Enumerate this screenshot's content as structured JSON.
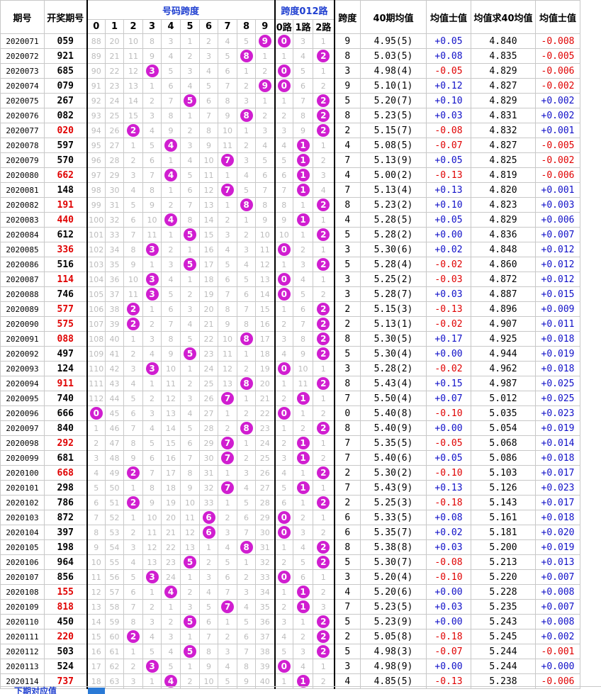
{
  "header": {
    "period": "期号",
    "number": "开奖期号",
    "digits_group": "号码跨度",
    "route_group": "跨度012路",
    "span": "跨度",
    "avg40": "40期均值",
    "dev": "均值士值",
    "avg_of_avg": "均值求40均值",
    "dev2": "均值士值",
    "digits": [
      "0",
      "1",
      "2",
      "3",
      "4",
      "5",
      "6",
      "7",
      "8",
      "9"
    ],
    "routes": [
      "0路",
      "1路",
      "2路"
    ]
  },
  "colors": {
    "ball": "#d01ed0",
    "red": "#e00000",
    "blue": "#1010c8"
  },
  "rows": [
    {
      "p": "2020071",
      "n": "059",
      "red": false,
      "d": [
        88,
        20,
        10,
        8,
        3,
        1,
        2,
        4,
        5,
        "B"
      ],
      "r": [
        "B",
        3,
        1
      ],
      "s": "9",
      "a": "4.95(5)",
      "v": "+0.05",
      "m": "4.840",
      "w": "-0.008"
    },
    {
      "p": "2020072",
      "n": "921",
      "red": false,
      "d": [
        89,
        21,
        11,
        9,
        4,
        2,
        3,
        5,
        "B",
        1
      ],
      "r": [
        1,
        4,
        "B"
      ],
      "s": "8",
      "a": "5.03(5)",
      "v": "+0.08",
      "m": "4.835",
      "w": "-0.005"
    },
    {
      "p": "2020073",
      "n": "685",
      "red": false,
      "d": [
        90,
        22,
        12,
        "B",
        5,
        3,
        4,
        6,
        1,
        2
      ],
      "r": [
        "B",
        5,
        1
      ],
      "s": "3",
      "a": "4.98(4)",
      "v": "-0.05",
      "m": "4.829",
      "w": "-0.006"
    },
    {
      "p": "2020074",
      "n": "079",
      "red": false,
      "d": [
        91,
        23,
        13,
        1,
        6,
        4,
        5,
        7,
        2,
        "B"
      ],
      "r": [
        "B",
        6,
        2
      ],
      "s": "9",
      "a": "5.10(1)",
      "v": "+0.12",
      "m": "4.827",
      "w": "-0.002"
    },
    {
      "p": "2020075",
      "n": "267",
      "red": false,
      "d": [
        92,
        24,
        14,
        2,
        7,
        "B",
        6,
        8,
        3,
        1
      ],
      "r": [
        1,
        7,
        "B"
      ],
      "s": "5",
      "a": "5.20(7)",
      "v": "+0.10",
      "m": "4.829",
      "w": "+0.002"
    },
    {
      "p": "2020076",
      "n": "082",
      "red": false,
      "d": [
        93,
        25,
        15,
        3,
        8,
        1,
        7,
        9,
        "B",
        2
      ],
      "r": [
        2,
        8,
        "B"
      ],
      "s": "8",
      "a": "5.23(5)",
      "v": "+0.03",
      "m": "4.831",
      "w": "+0.002"
    },
    {
      "p": "2020077",
      "n": "020",
      "red": true,
      "d": [
        94,
        26,
        "B",
        4,
        9,
        2,
        8,
        10,
        1,
        3
      ],
      "r": [
        3,
        9,
        "B"
      ],
      "s": "2",
      "a": "5.15(7)",
      "v": "-0.08",
      "m": "4.832",
      "w": "+0.001"
    },
    {
      "p": "2020078",
      "n": "597",
      "red": false,
      "d": [
        95,
        27,
        1,
        5,
        "B",
        3,
        9,
        11,
        2,
        4
      ],
      "r": [
        4,
        "B",
        1
      ],
      "s": "4",
      "a": "5.08(5)",
      "v": "-0.07",
      "m": "4.827",
      "w": "-0.005"
    },
    {
      "p": "2020079",
      "n": "570",
      "red": false,
      "d": [
        96,
        28,
        2,
        6,
        1,
        4,
        10,
        "B",
        3,
        5
      ],
      "r": [
        5,
        "B",
        2
      ],
      "s": "7",
      "a": "5.13(9)",
      "v": "+0.05",
      "m": "4.825",
      "w": "-0.002"
    },
    {
      "p": "2020080",
      "n": "662",
      "red": true,
      "d": [
        97,
        29,
        3,
        7,
        "B",
        5,
        11,
        1,
        4,
        6
      ],
      "r": [
        6,
        "B",
        3
      ],
      "s": "4",
      "a": "5.00(2)",
      "v": "-0.13",
      "m": "4.819",
      "w": "-0.006"
    },
    {
      "p": "2020081",
      "n": "148",
      "red": false,
      "d": [
        98,
        30,
        4,
        8,
        1,
        6,
        12,
        "B",
        5,
        7
      ],
      "r": [
        7,
        "B",
        4
      ],
      "s": "7",
      "a": "5.13(4)",
      "v": "+0.13",
      "m": "4.820",
      "w": "+0.001"
    },
    {
      "p": "2020082",
      "n": "191",
      "red": true,
      "d": [
        99,
        31,
        5,
        9,
        2,
        7,
        13,
        1,
        "B",
        8
      ],
      "r": [
        8,
        1,
        "B"
      ],
      "s": "8",
      "a": "5.23(2)",
      "v": "+0.10",
      "m": "4.823",
      "w": "+0.003"
    },
    {
      "p": "2020083",
      "n": "440",
      "red": true,
      "d": [
        100,
        32,
        6,
        10,
        "B",
        8,
        14,
        2,
        1,
        9
      ],
      "r": [
        9,
        "B",
        1
      ],
      "s": "4",
      "a": "5.28(5)",
      "v": "+0.05",
      "m": "4.829",
      "w": "+0.006"
    },
    {
      "p": "2020084",
      "n": "612",
      "red": false,
      "d": [
        101,
        33,
        7,
        11,
        1,
        "B",
        15,
        3,
        2,
        10
      ],
      "r": [
        10,
        1,
        "B"
      ],
      "s": "5",
      "a": "5.28(2)",
      "v": "+0.00",
      "m": "4.836",
      "w": "+0.007"
    },
    {
      "p": "2020085",
      "n": "336",
      "red": true,
      "d": [
        102,
        34,
        8,
        "B",
        2,
        1,
        16,
        4,
        3,
        11
      ],
      "r": [
        "B",
        2,
        1
      ],
      "s": "3",
      "a": "5.30(6)",
      "v": "+0.02",
      "m": "4.848",
      "w": "+0.012"
    },
    {
      "p": "2020086",
      "n": "516",
      "red": false,
      "d": [
        103,
        35,
        9,
        1,
        3,
        "B",
        17,
        5,
        4,
        12
      ],
      "r": [
        1,
        3,
        "B"
      ],
      "s": "5",
      "a": "5.28(4)",
      "v": "-0.02",
      "m": "4.860",
      "w": "+0.012"
    },
    {
      "p": "2020087",
      "n": "114",
      "red": true,
      "d": [
        104,
        36,
        10,
        "B",
        4,
        1,
        18,
        6,
        5,
        13
      ],
      "r": [
        "B",
        4,
        1
      ],
      "s": "3",
      "a": "5.25(2)",
      "v": "-0.03",
      "m": "4.872",
      "w": "+0.012"
    },
    {
      "p": "2020088",
      "n": "746",
      "red": false,
      "d": [
        105,
        37,
        11,
        "B",
        5,
        2,
        19,
        7,
        6,
        14
      ],
      "r": [
        "B",
        5,
        2
      ],
      "s": "3",
      "a": "5.28(7)",
      "v": "+0.03",
      "m": "4.887",
      "w": "+0.015"
    },
    {
      "p": "2020089",
      "n": "577",
      "red": true,
      "d": [
        106,
        38,
        "B",
        1,
        6,
        3,
        20,
        8,
        7,
        15
      ],
      "r": [
        1,
        6,
        "B"
      ],
      "s": "2",
      "a": "5.15(3)",
      "v": "-0.13",
      "m": "4.896",
      "w": "+0.009"
    },
    {
      "p": "2020090",
      "n": "575",
      "red": true,
      "d": [
        107,
        39,
        "B",
        2,
        7,
        4,
        21,
        9,
        8,
        16
      ],
      "r": [
        2,
        7,
        "B"
      ],
      "s": "2",
      "a": "5.13(1)",
      "v": "-0.02",
      "m": "4.907",
      "w": "+0.011"
    },
    {
      "p": "2020091",
      "n": "088",
      "red": true,
      "d": [
        108,
        40,
        1,
        3,
        8,
        5,
        22,
        10,
        "B",
        17
      ],
      "r": [
        3,
        8,
        "B"
      ],
      "s": "8",
      "a": "5.30(5)",
      "v": "+0.17",
      "m": "4.925",
      "w": "+0.018"
    },
    {
      "p": "2020092",
      "n": "497",
      "red": false,
      "d": [
        109,
        41,
        2,
        4,
        9,
        "B",
        23,
        11,
        1,
        18
      ],
      "r": [
        4,
        9,
        "B"
      ],
      "s": "5",
      "a": "5.30(4)",
      "v": "+0.00",
      "m": "4.944",
      "w": "+0.019"
    },
    {
      "p": "2020093",
      "n": "124",
      "red": false,
      "d": [
        110,
        42,
        3,
        "B",
        10,
        1,
        24,
        12,
        2,
        19
      ],
      "r": [
        "B",
        10,
        1
      ],
      "s": "3",
      "a": "5.28(2)",
      "v": "-0.02",
      "m": "4.962",
      "w": "+0.018"
    },
    {
      "p": "2020094",
      "n": "911",
      "red": true,
      "d": [
        111,
        43,
        4,
        1,
        11,
        2,
        25,
        13,
        "B",
        20
      ],
      "r": [
        1,
        11,
        "B"
      ],
      "s": "8",
      "a": "5.43(4)",
      "v": "+0.15",
      "m": "4.987",
      "w": "+0.025"
    },
    {
      "p": "2020095",
      "n": "740",
      "red": false,
      "d": [
        112,
        44,
        5,
        2,
        12,
        3,
        26,
        "B",
        1,
        21
      ],
      "r": [
        2,
        "B",
        1
      ],
      "s": "7",
      "a": "5.50(4)",
      "v": "+0.07",
      "m": "5.012",
      "w": "+0.025"
    },
    {
      "p": "2020096",
      "n": "666",
      "red": false,
      "d": [
        "B",
        45,
        6,
        3,
        13,
        4,
        27,
        1,
        2,
        22
      ],
      "r": [
        "B",
        1,
        2
      ],
      "s": "0",
      "a": "5.40(8)",
      "v": "-0.10",
      "m": "5.035",
      "w": "+0.023"
    },
    {
      "p": "2020097",
      "n": "840",
      "red": false,
      "d": [
        1,
        46,
        7,
        4,
        14,
        5,
        28,
        2,
        "B",
        23
      ],
      "r": [
        1,
        2,
        "B"
      ],
      "s": "8",
      "a": "5.40(9)",
      "v": "+0.00",
      "m": "5.054",
      "w": "+0.019"
    },
    {
      "p": "2020098",
      "n": "292",
      "red": true,
      "d": [
        2,
        47,
        8,
        5,
        15,
        6,
        29,
        "B",
        1,
        24
      ],
      "r": [
        2,
        "B",
        1
      ],
      "s": "7",
      "a": "5.35(5)",
      "v": "-0.05",
      "m": "5.068",
      "w": "+0.014"
    },
    {
      "p": "2020099",
      "n": "681",
      "red": false,
      "d": [
        3,
        48,
        9,
        6,
        16,
        7,
        30,
        "B",
        2,
        25
      ],
      "r": [
        3,
        "B",
        2
      ],
      "s": "7",
      "a": "5.40(6)",
      "v": "+0.05",
      "m": "5.086",
      "w": "+0.018"
    },
    {
      "p": "2020100",
      "n": "668",
      "red": true,
      "d": [
        4,
        49,
        "B",
        7,
        17,
        8,
        31,
        1,
        3,
        26
      ],
      "r": [
        4,
        1,
        "B"
      ],
      "s": "2",
      "a": "5.30(2)",
      "v": "-0.10",
      "m": "5.103",
      "w": "+0.017"
    },
    {
      "p": "2020101",
      "n": "298",
      "red": false,
      "d": [
        5,
        50,
        1,
        8,
        18,
        9,
        32,
        "B",
        4,
        27
      ],
      "r": [
        5,
        "B",
        1
      ],
      "s": "7",
      "a": "5.43(9)",
      "v": "+0.13",
      "m": "5.126",
      "w": "+0.023"
    },
    {
      "p": "2020102",
      "n": "786",
      "red": false,
      "d": [
        6,
        51,
        "B",
        9,
        19,
        10,
        33,
        1,
        5,
        28
      ],
      "r": [
        6,
        1,
        "B"
      ],
      "s": "2",
      "a": "5.25(3)",
      "v": "-0.18",
      "m": "5.143",
      "w": "+0.017"
    },
    {
      "p": "2020103",
      "n": "872",
      "red": false,
      "d": [
        7,
        52,
        1,
        10,
        20,
        11,
        "B",
        2,
        6,
        29
      ],
      "r": [
        "B",
        2,
        1
      ],
      "s": "6",
      "a": "5.33(5)",
      "v": "+0.08",
      "m": "5.161",
      "w": "+0.018"
    },
    {
      "p": "2020104",
      "n": "397",
      "red": false,
      "d": [
        8,
        53,
        2,
        11,
        21,
        12,
        "B",
        3,
        7,
        30
      ],
      "r": [
        "B",
        3,
        2
      ],
      "s": "6",
      "a": "5.35(7)",
      "v": "+0.02",
      "m": "5.181",
      "w": "+0.020"
    },
    {
      "p": "2020105",
      "n": "198",
      "red": false,
      "d": [
        9,
        54,
        3,
        12,
        22,
        13,
        1,
        4,
        "B",
        31
      ],
      "r": [
        1,
        4,
        "B"
      ],
      "s": "8",
      "a": "5.38(8)",
      "v": "+0.03",
      "m": "5.200",
      "w": "+0.019"
    },
    {
      "p": "2020106",
      "n": "964",
      "red": false,
      "d": [
        10,
        55,
        4,
        13,
        23,
        "B",
        2,
        5,
        1,
        32
      ],
      "r": [
        2,
        5,
        "B"
      ],
      "s": "5",
      "a": "5.30(7)",
      "v": "-0.08",
      "m": "5.213",
      "w": "+0.013"
    },
    {
      "p": "2020107",
      "n": "856",
      "red": false,
      "d": [
        11,
        56,
        5,
        "B",
        24,
        1,
        3,
        6,
        2,
        33
      ],
      "r": [
        "B",
        6,
        1
      ],
      "s": "3",
      "a": "5.20(4)",
      "v": "-0.10",
      "m": "5.220",
      "w": "+0.007"
    },
    {
      "p": "2020108",
      "n": "155",
      "red": true,
      "d": [
        12,
        57,
        6,
        1,
        "B",
        2,
        4,
        7,
        3,
        34
      ],
      "r": [
        1,
        "B",
        2
      ],
      "s": "4",
      "a": "5.20(6)",
      "v": "+0.00",
      "m": "5.228",
      "w": "+0.008"
    },
    {
      "p": "2020109",
      "n": "818",
      "red": true,
      "d": [
        13,
        58,
        7,
        2,
        1,
        3,
        5,
        "B",
        4,
        35
      ],
      "r": [
        2,
        "B",
        3
      ],
      "s": "7",
      "a": "5.23(5)",
      "v": "+0.03",
      "m": "5.235",
      "w": "+0.007"
    },
    {
      "p": "2020110",
      "n": "450",
      "red": false,
      "d": [
        14,
        59,
        8,
        3,
        2,
        "B",
        6,
        1,
        5,
        36
      ],
      "r": [
        3,
        1,
        "B"
      ],
      "s": "5",
      "a": "5.23(9)",
      "v": "+0.00",
      "m": "5.243",
      "w": "+0.008"
    },
    {
      "p": "2020111",
      "n": "220",
      "red": true,
      "d": [
        15,
        60,
        "B",
        4,
        3,
        1,
        7,
        2,
        6,
        37
      ],
      "r": [
        4,
        2,
        "B"
      ],
      "s": "2",
      "a": "5.05(8)",
      "v": "-0.18",
      "m": "5.245",
      "w": "+0.002"
    },
    {
      "p": "2020112",
      "n": "503",
      "red": false,
      "d": [
        16,
        61,
        1,
        5,
        4,
        "B",
        8,
        3,
        7,
        38
      ],
      "r": [
        5,
        3,
        "B"
      ],
      "s": "5",
      "a": "4.98(3)",
      "v": "-0.07",
      "m": "5.244",
      "w": "-0.001"
    },
    {
      "p": "2020113",
      "n": "524",
      "red": false,
      "d": [
        17,
        62,
        2,
        "B",
        5,
        1,
        9,
        4,
        8,
        39
      ],
      "r": [
        "B",
        4,
        1
      ],
      "s": "3",
      "a": "4.98(9)",
      "v": "+0.00",
      "m": "5.244",
      "w": "+0.000"
    },
    {
      "p": "2020114",
      "n": "737",
      "red": true,
      "d": [
        18,
        63,
        3,
        1,
        "B",
        2,
        10,
        5,
        9,
        40
      ],
      "r": [
        1,
        "B",
        2
      ],
      "s": "4",
      "a": "4.85(5)",
      "v": "-0.13",
      "m": "5.238",
      "w": "-0.006"
    }
  ],
  "footer": {
    "label": "下期对应值"
  }
}
